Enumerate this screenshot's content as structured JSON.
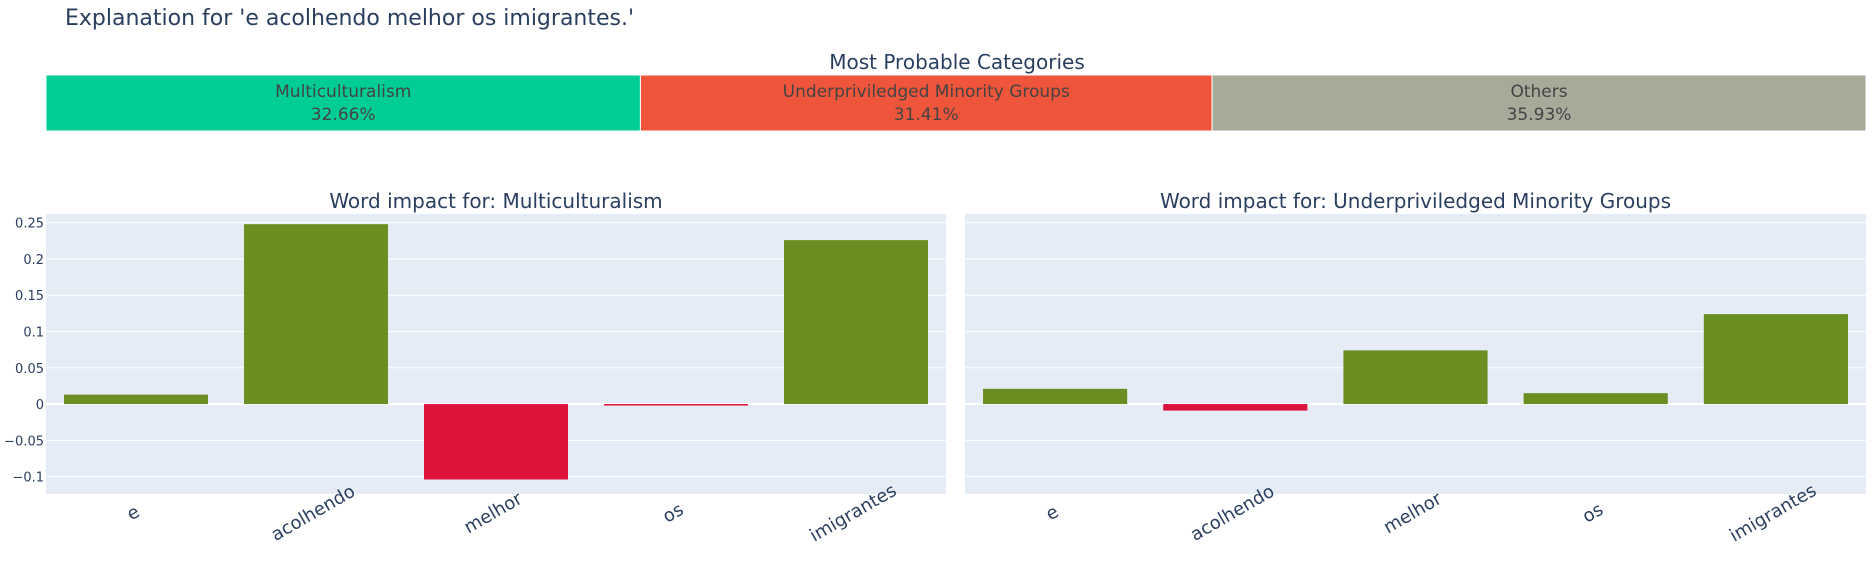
{
  "title": "Explanation for 'e acolhendo melhor os imigrantes.'",
  "categories_title": "Most Probable Categories",
  "category_bar": [
    {
      "name": "Multiculturalism",
      "percent_label": "32.66%",
      "value": 32.66,
      "color": "#00cc96"
    },
    {
      "name": "Underpriviledged Minority Groups",
      "percent_label": "31.41%",
      "value": 31.41,
      "color": "#ef553b"
    },
    {
      "name": "Others",
      "percent_label": "35.93%",
      "value": 35.93,
      "color": "#a5aa99"
    }
  ],
  "colors": {
    "positive": "#6b8e23",
    "negative": "#dc143c",
    "plot_bg": "#e5ecf6",
    "text": "#2a3f5f"
  },
  "chart_data": [
    {
      "type": "bar",
      "title": "Word impact for: Multiculturalism",
      "categories": [
        "e",
        "acolhendo",
        "melhor",
        "os",
        "imigrantes"
      ],
      "values": [
        0.013,
        0.248,
        -0.104,
        -0.002,
        0.226
      ],
      "ylim": [
        -0.124,
        0.262
      ],
      "yticks": [
        -0.1,
        -0.05,
        0,
        0.05,
        0.1,
        0.15,
        0.2,
        0.25
      ],
      "ytick_labels": [
        "−0.1",
        "−0.05",
        "0",
        "0.05",
        "0.1",
        "0.15",
        "0.2",
        "0.25"
      ],
      "grid": true,
      "xlabel": "",
      "ylabel": ""
    },
    {
      "type": "bar",
      "title": "Word impact for: Underpriviledged Minority Groups",
      "categories": [
        "e",
        "acolhendo",
        "melhor",
        "os",
        "imigrantes"
      ],
      "values": [
        0.021,
        -0.009,
        0.074,
        0.015,
        0.124
      ],
      "ylim": [
        -0.124,
        0.262
      ],
      "yticks": [
        -0.1,
        -0.05,
        0,
        0.05,
        0.1,
        0.15,
        0.2,
        0.25
      ],
      "ytick_labels": [],
      "grid": true,
      "xlabel": "",
      "ylabel": ""
    }
  ]
}
